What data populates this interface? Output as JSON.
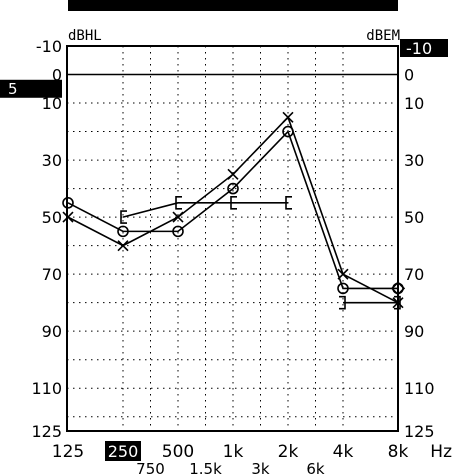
{
  "chart_data": {
    "type": "line",
    "left_unit": "dBHL",
    "right_unit": "dBEM",
    "x_unit": "Hz",
    "x_ticks": [
      "125",
      "250",
      "500",
      "1k",
      "2k",
      "4k",
      "8k"
    ],
    "x_ticks_half": [
      "750",
      "1.5k",
      "3k",
      "6k"
    ],
    "x_selected": "250",
    "y_ticks_left": [
      "-10",
      "0",
      "10",
      "30",
      "50",
      "70",
      "90",
      "110",
      "125"
    ],
    "y_ticks_right": [
      "-10",
      "0",
      "10",
      "30",
      "50",
      "70",
      "90",
      "110",
      "125"
    ],
    "y_left_highlight": "5",
    "y_right_highlight": "-10",
    "ylim": [
      -10,
      125
    ],
    "y_inverted": true,
    "reference_line_db": 0,
    "grid": "dotted",
    "series": [
      {
        "marker": "circle",
        "x": [
          "125",
          "250",
          "500",
          "1k",
          "2k",
          "4k",
          "8k"
        ],
        "y": [
          45,
          55,
          55,
          40,
          20,
          75,
          75
        ]
      },
      {
        "marker": "cross",
        "x": [
          "125",
          "250",
          "500",
          "1k",
          "2k",
          "4k",
          "8k"
        ],
        "y": [
          50,
          60,
          50,
          35,
          15,
          70,
          80
        ]
      },
      {
        "marker": "bracket-left",
        "x": [
          "250",
          "500",
          "1k",
          "2k"
        ],
        "y": [
          50,
          45,
          45,
          45
        ]
      },
      {
        "marker": "bracket-right",
        "x": [
          "4k",
          "8k"
        ],
        "y": [
          80,
          80
        ]
      },
      {
        "marker": "diamond",
        "x": [
          "8k"
        ],
        "y": [
          75
        ]
      }
    ]
  }
}
